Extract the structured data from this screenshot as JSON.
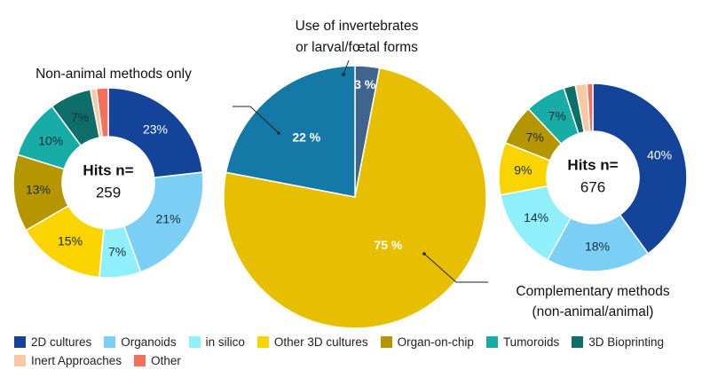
{
  "categories": [
    "2D cultures",
    "Organoids",
    "in silico",
    "Other 3D cultures",
    "Organ-on-chip",
    "Tumoroids",
    "3D Bioprinting",
    "Inert Approaches",
    "Other"
  ],
  "colors": {
    "2D cultures": "#13449a",
    "Organoids": "#7bcff5",
    "in silico": "#8ff0fb",
    "Other 3D cultures": "#fad400",
    "Organ-on-chip": "#b59500",
    "Tumoroids": "#18aca6",
    "3D Bioprinting": "#0e6e6a",
    "Inert Approaches": "#f9c9a5",
    "Other": "#f5705a",
    "pie_invertebrates": "#41648f",
    "pie_complementary": "#e8bf00",
    "pie_nonanimal": "#1479a7"
  },
  "chart_data": [
    {
      "type": "pie",
      "subtype": "donut",
      "title": "Non-animal methods only",
      "center_label": "Hits n=",
      "center_value": "259",
      "categories": [
        "2D cultures",
        "Organoids",
        "in silico",
        "Other 3D cultures",
        "Organ-on-chip",
        "Tumoroids",
        "3D Bioprinting",
        "Inert Approaches",
        "Other"
      ],
      "values": [
        23,
        21,
        7,
        15,
        13,
        10,
        7,
        1,
        2
      ],
      "labels": [
        "23%",
        "21%",
        "7%",
        "15%",
        "13%",
        "10%",
        "7%",
        "",
        ""
      ]
    },
    {
      "type": "pie",
      "title": "",
      "categories": [
        "Use of invertebrates or larval/fœtal forms",
        "Complementary methods (non-animal/animal)",
        "Non-animal methods only"
      ],
      "values": [
        3,
        75,
        22
      ],
      "labels": [
        "3 %",
        "75 %",
        "22 %"
      ],
      "annotations": {
        "invertebrates_line1": "Use of invertebrates",
        "invertebrates_line2": "or larval/fœtal forms",
        "complementary_line1": "Complementary methods",
        "complementary_line2": "(non-animal/animal)"
      }
    },
    {
      "type": "pie",
      "subtype": "donut",
      "title": "",
      "center_label": "Hits n=",
      "center_value": "676",
      "categories": [
        "2D cultures",
        "Organoids",
        "in silico",
        "Other 3D cultures",
        "Organ-on-chip",
        "Tumoroids",
        "3D Bioprinting",
        "Inert Approaches",
        "Other"
      ],
      "values": [
        40,
        18,
        14,
        9,
        7,
        7,
        2,
        2,
        1
      ],
      "labels": [
        "40%",
        "18%",
        "14%",
        "9%",
        "7%",
        "7%",
        "",
        "",
        ""
      ]
    }
  ]
}
